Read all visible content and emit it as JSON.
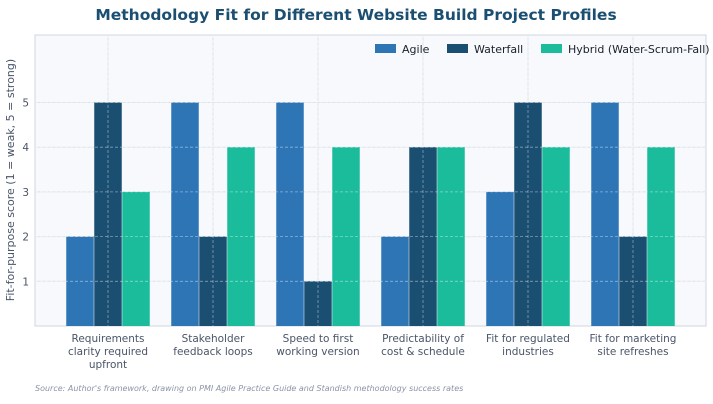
{
  "chart_data": {
    "type": "bar",
    "title": "Methodology Fit for Different Website Build Project Profiles",
    "xlabel": "",
    "ylabel": "Fit-for-purpose score (1 = weak, 5 = strong)",
    "ylim": [
      0,
      5.2
    ],
    "yticks": [
      1,
      2,
      3,
      4,
      5
    ],
    "grid": true,
    "legend_position": "top-right",
    "categories": [
      [
        "Requirements",
        "clarity required",
        "upfront"
      ],
      [
        "Stakeholder",
        "feedback loops"
      ],
      [
        "Speed to first",
        "working version"
      ],
      [
        "Predictability of",
        "cost & schedule"
      ],
      [
        "Fit for regulated",
        "industries"
      ],
      [
        "Fit for marketing",
        "site refreshes"
      ]
    ],
    "series": [
      {
        "name": "Agile",
        "color": "#2e75b6",
        "values": [
          2,
          5,
          5,
          2,
          3,
          5
        ]
      },
      {
        "name": "Waterfall",
        "color": "#1b4f72",
        "values": [
          5,
          2,
          1,
          4,
          5,
          2
        ]
      },
      {
        "name": "Hybrid (Water-Scrum-Fall)",
        "color": "#1abc9c",
        "values": [
          3,
          4,
          4,
          4,
          4,
          4
        ]
      }
    ],
    "source": "Source: Author's framework, drawing on PMI Agile Practice Guide and Standish methodology success rates",
    "colors": {
      "title": "#1b4f72",
      "plot_bg": "#f7f9fc",
      "grid": "#dde3ea"
    }
  }
}
